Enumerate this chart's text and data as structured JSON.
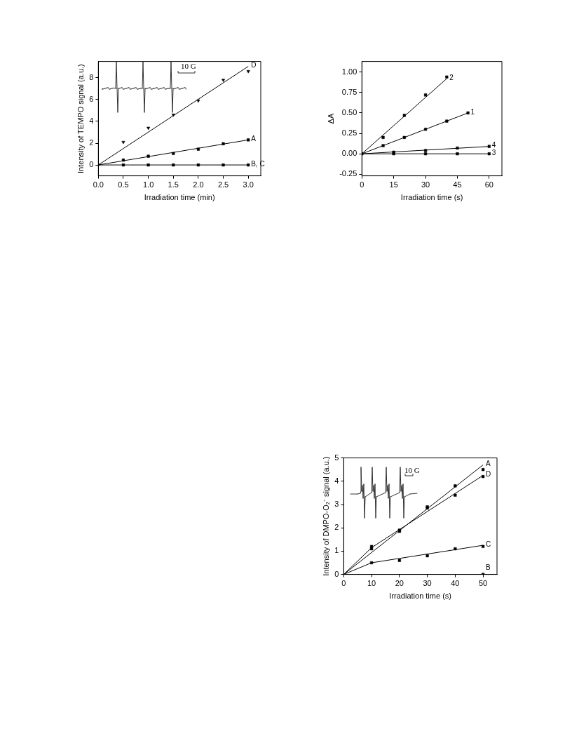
{
  "chart_data": [
    {
      "type": "scatter",
      "xlabel": "Irradiation time (min)",
      "ylabel": "Intensity of TEMPO signal (a.u.)",
      "xlim": [
        0,
        3.25
      ],
      "ylim": [
        -1,
        9.5
      ],
      "xticks": [
        {
          "value": 0,
          "label": "0.0"
        },
        {
          "value": 0.5,
          "label": "0.5"
        },
        {
          "value": 1,
          "label": "1.0"
        },
        {
          "value": 1.5,
          "label": "1.5"
        },
        {
          "value": 2,
          "label": "2.0"
        },
        {
          "value": 2.5,
          "label": "2.5"
        },
        {
          "value": 3,
          "label": "3.0"
        }
      ],
      "yticks": [
        0,
        2,
        4,
        6,
        8
      ],
      "series": [
        {
          "type": "scatter",
          "marker": "triangle",
          "color": "#000000",
          "x": [
            0,
            0.5,
            1,
            1.5,
            2,
            2.5,
            3
          ],
          "values": [
            0,
            2.1,
            3.4,
            4.6,
            5.9,
            7.8,
            8.6
          ]
        },
        {
          "type": "line",
          "name": "D",
          "marker": "none",
          "color": "#000000",
          "x": [
            0,
            3
          ],
          "values": [
            0,
            9.05
          ]
        },
        {
          "type": "scatter",
          "marker": "square",
          "color": "#000000",
          "x": [
            0.5,
            1,
            1.5,
            2,
            2.5,
            3
          ],
          "values": [
            0.45,
            0.8,
            1.05,
            1.45,
            1.95,
            2.3
          ]
        },
        {
          "type": "line",
          "name": "A",
          "marker": "none",
          "color": "#000000",
          "x": [
            0,
            3
          ],
          "values": [
            0,
            2.3
          ]
        },
        {
          "type": "scatter",
          "marker": "square",
          "color": "#000000",
          "x": [
            0.5,
            1,
            1.5,
            2,
            2.5,
            3
          ],
          "values": [
            0,
            0,
            0,
            0,
            0,
            0
          ]
        },
        {
          "type": "line",
          "name": "B, C",
          "marker": "none",
          "color": "#000000",
          "x": [
            0,
            3
          ],
          "values": [
            0,
            0
          ]
        }
      ],
      "annotations": [
        "10 G"
      ]
    },
    {
      "type": "scatter",
      "xlabel": "Irradiation time (s)",
      "ylabel": "ΔA",
      "xlim": [
        0,
        66
      ],
      "ylim": [
        -0.27,
        1.13
      ],
      "xticks": [
        0,
        15,
        30,
        45,
        60
      ],
      "yticks": [
        {
          "value": -0.25,
          "label": "-0.25"
        },
        {
          "value": 0,
          "label": "0.00"
        },
        {
          "value": 0.25,
          "label": "0.25"
        },
        {
          "value": 0.5,
          "label": "0.50"
        },
        {
          "value": 0.75,
          "label": "0.75"
        },
        {
          "value": 1,
          "label": "1.00"
        }
      ],
      "series": [
        {
          "type": "scatter",
          "marker": "square",
          "color": "#000000",
          "x": [
            0,
            10,
            20,
            30,
            40
          ],
          "values": [
            0,
            0.2,
            0.47,
            0.72,
            0.94
          ]
        },
        {
          "type": "line",
          "name": "2",
          "marker": "none",
          "color": "#000000",
          "x": [
            0,
            40
          ],
          "values": [
            0,
            0.92
          ]
        },
        {
          "type": "scatter",
          "marker": "square",
          "color": "#000000",
          "x": [
            10,
            20,
            30,
            40,
            50
          ],
          "values": [
            0.1,
            0.2,
            0.3,
            0.4,
            0.5
          ]
        },
        {
          "type": "line",
          "name": "1",
          "marker": "none",
          "color": "#000000",
          "x": [
            0,
            50
          ],
          "values": [
            0,
            0.5
          ]
        },
        {
          "type": "scatter",
          "marker": "square",
          "color": "#000000",
          "x": [
            15,
            30,
            45,
            60
          ],
          "values": [
            0.02,
            0.04,
            0.07,
            0.09
          ]
        },
        {
          "type": "line",
          "name": "4",
          "marker": "none",
          "color": "#000000",
          "x": [
            0,
            60
          ],
          "values": [
            0,
            0.09
          ]
        },
        {
          "type": "scatter",
          "marker": "square",
          "color": "#000000",
          "x": [
            15,
            30,
            45,
            60
          ],
          "values": [
            0,
            0,
            0,
            0
          ]
        },
        {
          "type": "line",
          "name": "3",
          "marker": "none",
          "color": "#000000",
          "x": [
            0,
            60
          ],
          "values": [
            0,
            0
          ]
        }
      ]
    },
    {
      "type": "scatter",
      "xlabel": "Irradiation time (s)",
      "ylabel": "Intensity of DMPO-O₂⁻ signal (a.u.)",
      "xlim": [
        0,
        55
      ],
      "ylim": [
        0,
        5
      ],
      "xticks": [
        0,
        10,
        20,
        30,
        40,
        50
      ],
      "yticks": [
        0,
        1,
        2,
        3,
        4,
        5
      ],
      "series": [
        {
          "type": "scatter",
          "marker": "square",
          "color": "#000000",
          "x": [
            10,
            20,
            30,
            40,
            50
          ],
          "values": [
            1.2,
            1.85,
            2.9,
            3.8,
            4.5
          ]
        },
        {
          "type": "line",
          "name": "A",
          "marker": "none",
          "color": "#000000",
          "x": [
            0,
            50
          ],
          "values": [
            0,
            4.7
          ]
        },
        {
          "type": "scatter",
          "marker": "square",
          "color": "#000000",
          "x": [
            10,
            20,
            30,
            40,
            50
          ],
          "values": [
            1.1,
            1.9,
            2.85,
            3.4,
            4.2
          ]
        },
        {
          "type": "line",
          "name": "D",
          "marker": "none",
          "color": "#000000",
          "x": [
            0,
            10,
            50
          ],
          "values": [
            0,
            1.15,
            4.25
          ]
        },
        {
          "type": "scatter",
          "marker": "square",
          "color": "#000000",
          "x": [
            10,
            20,
            30,
            40,
            50
          ],
          "values": [
            0.5,
            0.6,
            0.8,
            1.1,
            1.2
          ]
        },
        {
          "type": "line",
          "name": "C",
          "marker": "none",
          "color": "#000000",
          "x": [
            0,
            10,
            50
          ],
          "values": [
            0,
            0.5,
            1.25
          ]
        },
        {
          "type": "scatter",
          "name": "B",
          "marker": "square",
          "color": "#000000",
          "x": [
            50
          ],
          "values": [
            0
          ]
        }
      ],
      "annotations": [
        "10 G"
      ]
    }
  ]
}
